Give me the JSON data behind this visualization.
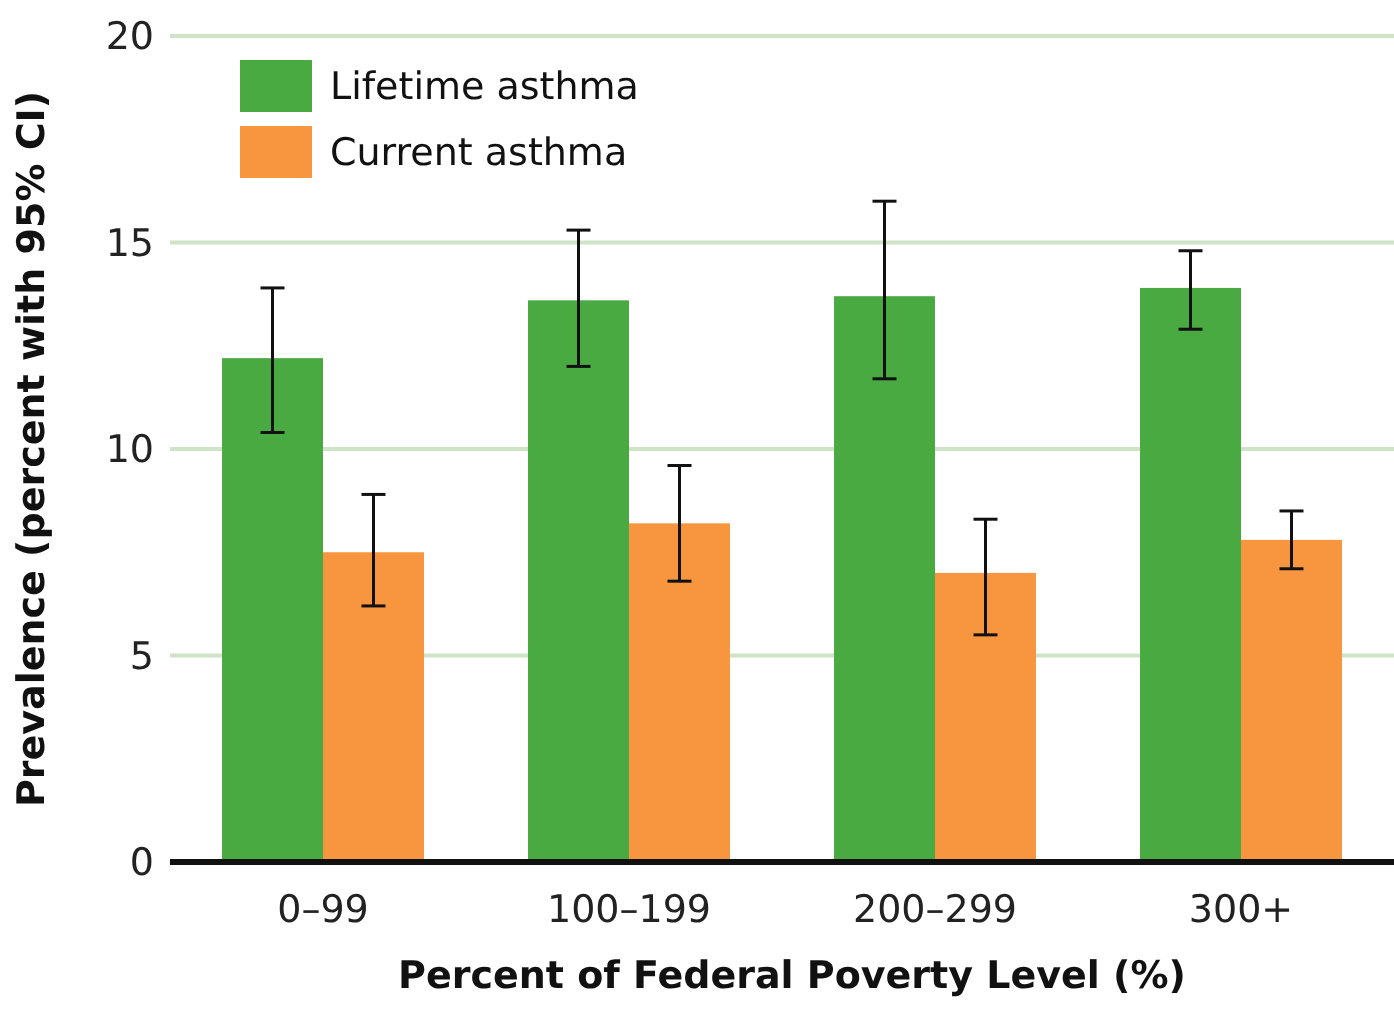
{
  "chart_data": {
    "type": "bar",
    "xlabel": "Percent of Federal Poverty Level (%)",
    "ylabel": "Prevalence (percent with 95% CI)",
    "categories": [
      "0–99",
      "100–199",
      "200–299",
      "300+"
    ],
    "series": [
      {
        "name": "Lifetime asthma",
        "color": "#4aaa42",
        "values": [
          12.2,
          13.6,
          13.7,
          13.9
        ],
        "errors": [
          [
            10.4,
            13.9
          ],
          [
            12.0,
            15.3
          ],
          [
            11.7,
            16.0
          ],
          [
            12.9,
            14.8
          ]
        ]
      },
      {
        "name": "Current asthma",
        "color": "#f7963f",
        "values": [
          7.5,
          8.2,
          7.0,
          7.8
        ],
        "errors": [
          [
            6.2,
            8.9
          ],
          [
            6.8,
            9.6
          ],
          [
            5.5,
            8.3
          ],
          [
            7.1,
            8.5
          ]
        ]
      }
    ],
    "ylim": [
      0,
      20
    ],
    "yticks": [
      0,
      5,
      10,
      15,
      20
    ],
    "grid": "y",
    "legend": "top left"
  }
}
